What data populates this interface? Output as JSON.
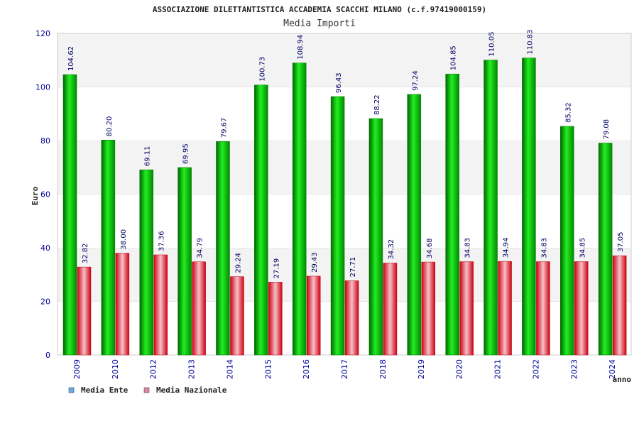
{
  "chart_data": {
    "type": "bar",
    "title": "ASSOCIAZIONE DILETTANTISTICA ACCADEMIA SCACCHI MILANO (c.f.97419000159)",
    "subtitle": "Media Importi",
    "xlabel": "anno",
    "ylabel": "Euro",
    "ylim": [
      0,
      120
    ],
    "yticks": [
      "0",
      "20",
      "40",
      "60",
      "80",
      "100",
      "120"
    ],
    "categories": [
      "2009",
      "2010",
      "2012",
      "2013",
      "2014",
      "2015",
      "2016",
      "2017",
      "2018",
      "2019",
      "2020",
      "2021",
      "2022",
      "2023",
      "2024"
    ],
    "series": [
      {
        "name": "Media Ente",
        "color": "#00aa00",
        "values": [
          104.62,
          80.2,
          69.11,
          69.95,
          79.67,
          100.73,
          108.94,
          96.43,
          88.22,
          97.24,
          104.85,
          110.05,
          110.83,
          85.32,
          79.08
        ],
        "labels": [
          "104.62",
          "80.20",
          "69.11",
          "69.95",
          "79.67",
          "100.73",
          "108.94",
          "96.43",
          "88.22",
          "97.24",
          "104.85",
          "110.05",
          "110.83",
          "85.32",
          "79.08"
        ]
      },
      {
        "name": "Media Nazionale",
        "color": "#dd2233",
        "values": [
          32.82,
          38.0,
          37.36,
          34.79,
          29.24,
          27.19,
          29.43,
          27.71,
          34.32,
          34.68,
          34.83,
          34.94,
          34.83,
          34.85,
          37.05
        ],
        "labels": [
          "32.82",
          "38.00",
          "37.36",
          "34.79",
          "29.24",
          "27.19",
          "29.43",
          "27.71",
          "34.32",
          "34.68",
          "34.83",
          "34.94",
          "34.83",
          "34.85",
          "37.05"
        ]
      }
    ],
    "legend": {
      "position": "bottom-left",
      "swatch_colors": [
        "#66aaee",
        "#dd88aa"
      ]
    },
    "grid": true
  }
}
